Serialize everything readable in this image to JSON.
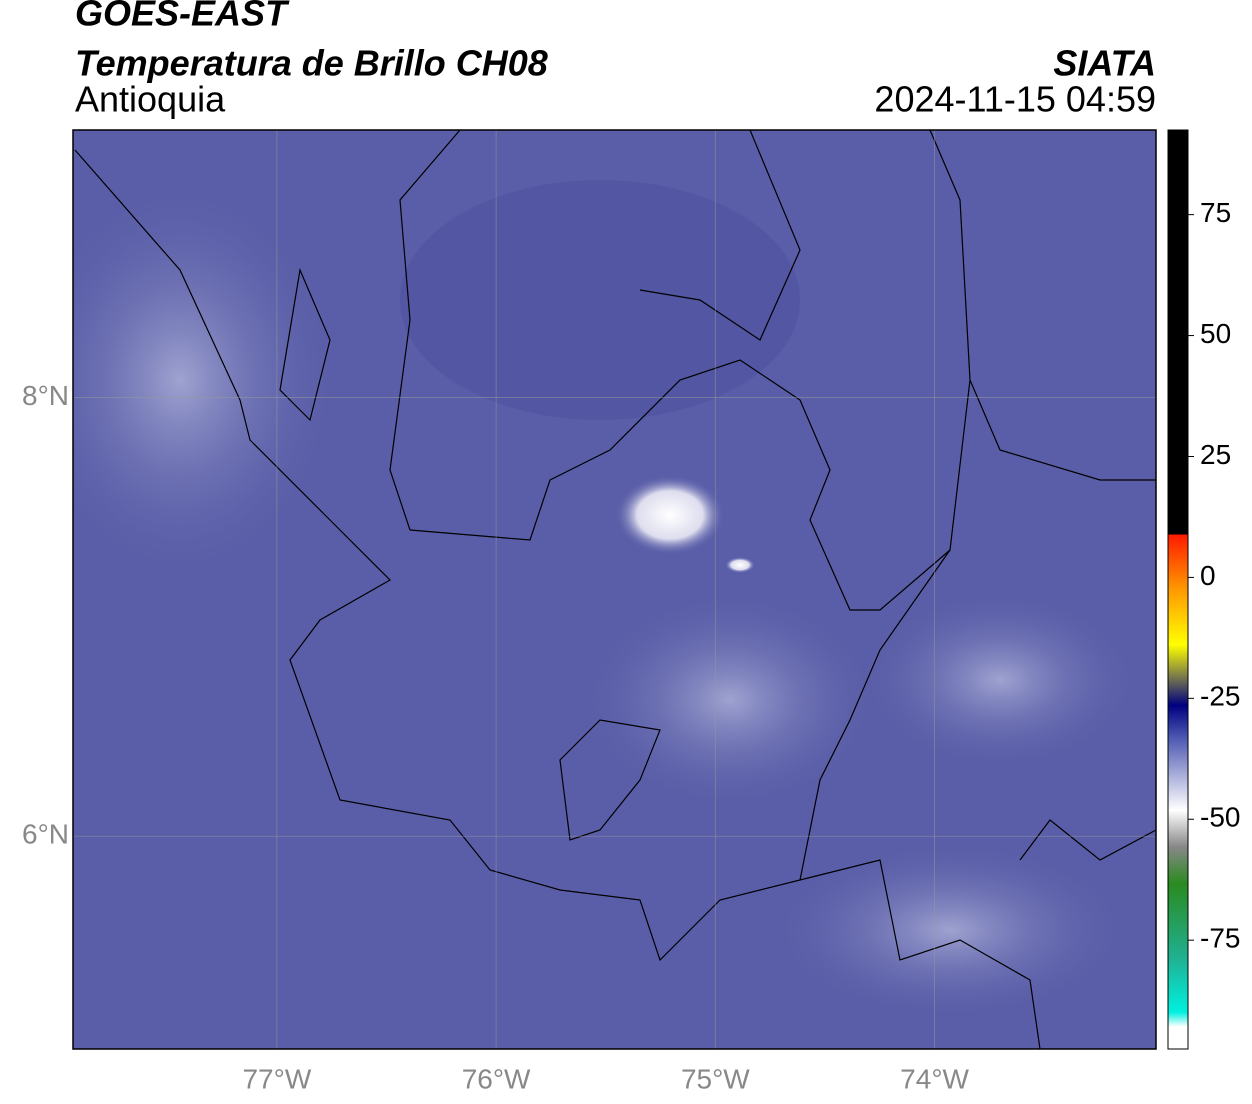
{
  "header": {
    "title": "GOES-EAST",
    "subtitle": "Temperatura de Brillo CH08",
    "region": "Antioquia",
    "source": "SIATA",
    "timestamp": "2024-11-15 04:59"
  },
  "map": {
    "xlim": [
      -77.93,
      -72.99
    ],
    "ylim": [
      5.03,
      9.22
    ],
    "xticks": [
      {
        "value": -77,
        "label": "77°W"
      },
      {
        "value": -76,
        "label": "76°W"
      },
      {
        "value": -75,
        "label": "75°W"
      },
      {
        "value": -74,
        "label": "74°W"
      }
    ],
    "yticks": [
      {
        "value": 8,
        "label": "8°N"
      },
      {
        "value": 6,
        "label": "6°N"
      }
    ],
    "grid": true
  },
  "colorbar": {
    "lim": [
      -97.5,
      92.5
    ],
    "ticks": [
      75,
      50,
      25,
      0,
      -25,
      -50,
      -75
    ]
  }
}
